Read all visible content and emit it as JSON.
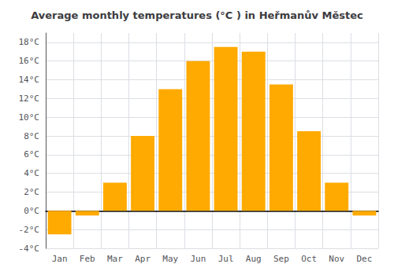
{
  "chart_data": {
    "type": "bar",
    "title": "Average monthly temperatures (°C ) in Heřmanův Městec",
    "categories": [
      "Jan",
      "Feb",
      "Mar",
      "Apr",
      "May",
      "Jun",
      "Jul",
      "Aug",
      "Sep",
      "Oct",
      "Nov",
      "Dec"
    ],
    "values": [
      -2.5,
      -0.5,
      3.0,
      8.0,
      13.0,
      16.0,
      17.5,
      17.0,
      13.5,
      8.5,
      3.0,
      -0.5
    ],
    "color": "#FFAA00",
    "ylim": [
      -4,
      19
    ],
    "yticks": [
      {
        "value": -4,
        "label": "-4°C"
      },
      {
        "value": -2,
        "label": "-2°C"
      },
      {
        "value": 0,
        "label": "0°C"
      },
      {
        "value": 2,
        "label": "2°C"
      },
      {
        "value": 4,
        "label": "4°C"
      },
      {
        "value": 6,
        "label": "6°C"
      },
      {
        "value": 8,
        "label": "8°C"
      },
      {
        "value": 10,
        "label": "10°C"
      },
      {
        "value": 12,
        "label": "12°C"
      },
      {
        "value": 14,
        "label": "14°C"
      },
      {
        "value": 16,
        "label": "16°C"
      },
      {
        "value": 18,
        "label": "18°C"
      }
    ],
    "grid": true
  }
}
